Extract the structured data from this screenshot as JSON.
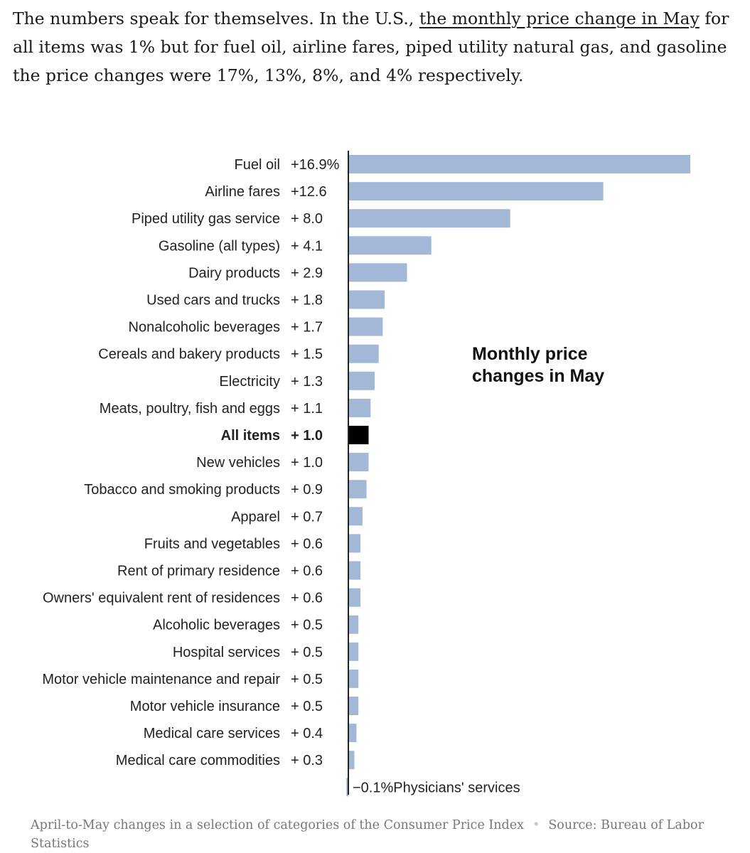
{
  "article": {
    "text_before": "The numbers speak for themselves. In the U.S., ",
    "link_text": "the monthly price change in May",
    "text_after": " for all items was 1% but for fuel oil, airline fares, piped utility natural gas, and gasoline the price changes were 17%, 13%, 8%, and 4% respectively."
  },
  "caption": {
    "description": "April-to-May changes in a selection of categories of the Consumer Price Index",
    "source": "Source: Bureau of Labor Statistics"
  },
  "colors": {
    "bar": "#a3b8d6",
    "highlight": "#000000",
    "axis": "#222222",
    "text": "#222222"
  },
  "chart_data": {
    "type": "bar",
    "orientation": "horizontal",
    "title": "Monthly price changes in May",
    "xlim": [
      -0.1,
      16.9
    ],
    "grid": false,
    "highlight": "All items",
    "categories": [
      "Fuel oil",
      "Airline fares",
      "Piped utility gas service",
      "Gasoline (all types)",
      "Dairy products",
      "Used cars and trucks",
      "Nonalcoholic beverages",
      "Cereals and bakery products",
      "Electricity",
      "Meats, poultry, fish and eggs",
      "All items",
      "New vehicles",
      "Tobacco and smoking products",
      "Apparel",
      "Fruits and vegetables",
      "Rent of primary residence",
      "Owners' equivalent rent of residences",
      "Alcoholic beverages",
      "Hospital services",
      "Motor vehicle maintenance and repair",
      "Motor vehicle insurance",
      "Medical care services",
      "Medical care commodities",
      "Physicians' services"
    ],
    "values": [
      16.9,
      12.6,
      8.0,
      4.1,
      2.9,
      1.8,
      1.7,
      1.5,
      1.3,
      1.1,
      1.0,
      1.0,
      0.9,
      0.7,
      0.6,
      0.6,
      0.6,
      0.5,
      0.5,
      0.5,
      0.5,
      0.4,
      0.3,
      -0.1
    ],
    "value_labels": [
      "+16.9%",
      "+12.6",
      "+ 8.0",
      "+ 4.1",
      "+ 2.9",
      "+ 1.8",
      "+ 1.7",
      "+ 1.5",
      "+ 1.3",
      "+ 1.1",
      "+ 1.0",
      "+ 1.0",
      "+ 0.9",
      "+ 0.7",
      "+ 0.6",
      "+ 0.6",
      "+ 0.6",
      "+ 0.5",
      "+ 0.5",
      "+ 0.5",
      "+ 0.5",
      "+ 0.4",
      "+ 0.3",
      "−0.1%"
    ]
  }
}
